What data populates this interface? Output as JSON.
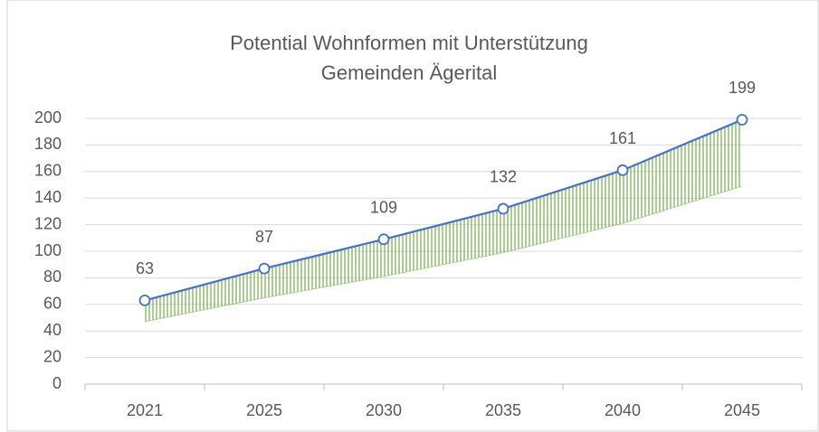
{
  "chart_data": {
    "type": "line",
    "title": [
      "Potential Wohnformen mit Unterstützung",
      "Gemeinden Ägerital"
    ],
    "categories": [
      "2021",
      "2025",
      "2030",
      "2035",
      "2040",
      "2045"
    ],
    "series": [
      {
        "values": [
          63,
          87,
          109,
          132,
          161,
          199
        ],
        "color": "#4472c4"
      },
      {
        "values": [
          47,
          65,
          81,
          99,
          121,
          149
        ],
        "color": "#70ad47"
      }
    ],
    "ylim": [
      0,
      200
    ],
    "yticks": [
      0,
      20,
      40,
      60,
      80,
      100,
      120,
      140,
      160,
      180,
      200
    ],
    "grid": true
  }
}
